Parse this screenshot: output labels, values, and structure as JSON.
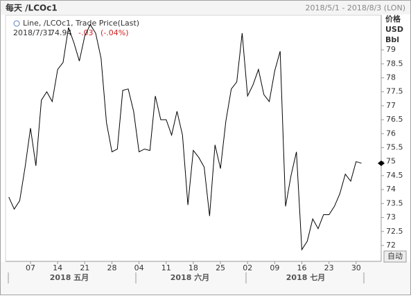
{
  "chart_data": {
    "type": "line",
    "title": "每天 /LCOc1",
    "range_label": "2018/5/1 - 2018/8/3 (LON)",
    "unit_labels": [
      "价格",
      "USD",
      "Bbl"
    ],
    "legend": {
      "name": "Line, /LCOc1, Trade Price(Last)",
      "date": "2018/7/31",
      "change": "-.03",
      "change_pct": "(-.04%)"
    },
    "auto_button": "自动",
    "categories": [
      null,
      null,
      null,
      null,
      "07",
      null,
      null,
      null,
      null,
      "14",
      null,
      null,
      null,
      null,
      "21",
      null,
      null,
      null,
      null,
      "28",
      null,
      null,
      null,
      null,
      "04",
      null,
      null,
      null,
      null,
      "11",
      null,
      null,
      null,
      null,
      "18",
      null,
      null,
      null,
      null,
      "25",
      null,
      null,
      null,
      null,
      "02",
      null,
      null,
      null,
      null,
      "09",
      null,
      null,
      null,
      null,
      "16",
      null,
      null,
      null,
      null,
      "23",
      null,
      null,
      null,
      null,
      "30",
      null
    ],
    "month_labels": [
      "2018 五月",
      "2018 六月",
      "2018 七月"
    ],
    "series": [
      {
        "name": "/LCOc1",
        "color": "#000000",
        "values": [
          73.73,
          73.3,
          73.6,
          74.8,
          76.2,
          74.85,
          77.2,
          77.5,
          77.15,
          78.3,
          78.55,
          79.8,
          79.25,
          78.6,
          79.5,
          79.9,
          79.6,
          78.7,
          76.4,
          75.35,
          75.45,
          77.55,
          77.6,
          76.8,
          75.35,
          75.45,
          75.4,
          77.35,
          76.5,
          76.5,
          75.95,
          76.8,
          75.95,
          73.45,
          75.4,
          75.15,
          74.8,
          73.05,
          75.6,
          74.75,
          76.45,
          77.6,
          77.85,
          79.6,
          77.35,
          77.75,
          78.3,
          77.4,
          77.15,
          78.25,
          78.95,
          73.4,
          74.5,
          75.35,
          71.85,
          72.15,
          72.95,
          72.6,
          73.1,
          73.1,
          73.4,
          73.85,
          74.55,
          74.3,
          75.0,
          74.94
        ]
      }
    ],
    "ylim": [
      71.43,
      80.24
    ],
    "yticks": [
      72,
      72.5,
      73,
      73.5,
      74,
      74.5,
      75,
      75.5,
      76,
      76.5,
      77,
      77.5,
      78,
      78.5,
      79
    ]
  }
}
